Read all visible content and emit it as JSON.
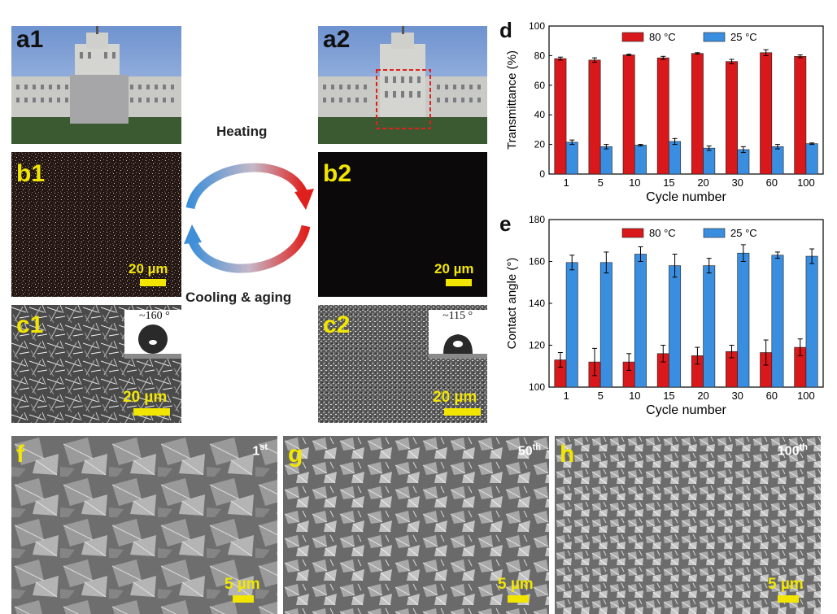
{
  "panels": {
    "a1": "a1",
    "a2": "a2",
    "b1": "b1",
    "b2": "b2",
    "c1": "c1",
    "c2": "c2",
    "f": "f",
    "g": "g",
    "h": "h"
  },
  "scale_20um": "20 µm",
  "scale_5um": "5 µm",
  "cycle_heating": "Heating",
  "cycle_cooling": "Cooling & aging",
  "angle_c1": "~160 °",
  "angle_c2": "~115 °",
  "sem_f": {
    "num": "1",
    "suffix": "st"
  },
  "sem_g": {
    "num": "50",
    "suffix": "th"
  },
  "sem_h": {
    "num": "100",
    "suffix": "th"
  },
  "colors": {
    "red_series": "#d8181a",
    "blue_series": "#3a8ee0",
    "scale_yellow": "#f2e600"
  },
  "chart_data": [
    {
      "panel": "d",
      "type": "bar",
      "xlabel": "Cycle number",
      "ylabel": "Transmittance (%)",
      "categories": [
        "1",
        "5",
        "10",
        "15",
        "20",
        "30",
        "60",
        "100"
      ],
      "ylim": [
        0,
        100
      ],
      "yticks": [
        "0",
        "20",
        "40",
        "60",
        "80",
        "100"
      ],
      "legend_position": "top",
      "series": [
        {
          "name": "80 °C",
          "color": "#d8181a",
          "values": [
            78,
            77,
            80.5,
            78.5,
            81.5,
            76,
            82,
            79.5
          ],
          "errors": [
            1,
            1.5,
            0.5,
            1,
            0.5,
            1.5,
            2,
            1
          ]
        },
        {
          "name": "25 °C",
          "color": "#3a8ee0",
          "values": [
            21.5,
            18.5,
            19.5,
            22,
            17.5,
            16.5,
            18.5,
            20.5
          ],
          "errors": [
            1.5,
            1.5,
            0.5,
            2,
            1.5,
            2,
            1.5,
            0.5
          ]
        }
      ]
    },
    {
      "panel": "e",
      "type": "bar",
      "xlabel": "Cycle number",
      "ylabel": "Contact angle (°)",
      "categories": [
        "1",
        "5",
        "10",
        "15",
        "20",
        "30",
        "60",
        "100"
      ],
      "ylim": [
        100,
        180
      ],
      "yticks": [
        "100",
        "120",
        "140",
        "160",
        "180"
      ],
      "legend_position": "top",
      "series": [
        {
          "name": "80 °C",
          "color": "#d8181a",
          "values": [
            113,
            112,
            112,
            116,
            115,
            117,
            116.5,
            119
          ],
          "errors": [
            3.5,
            6.5,
            4,
            4,
            4,
            3,
            6,
            4
          ]
        },
        {
          "name": "25 °C",
          "color": "#3a8ee0",
          "values": [
            159.5,
            159.5,
            163.5,
            158,
            158,
            164,
            163,
            162.5
          ],
          "errors": [
            3.5,
            5,
            3.5,
            5.5,
            3.5,
            4,
            1.5,
            3.5
          ]
        }
      ]
    }
  ]
}
